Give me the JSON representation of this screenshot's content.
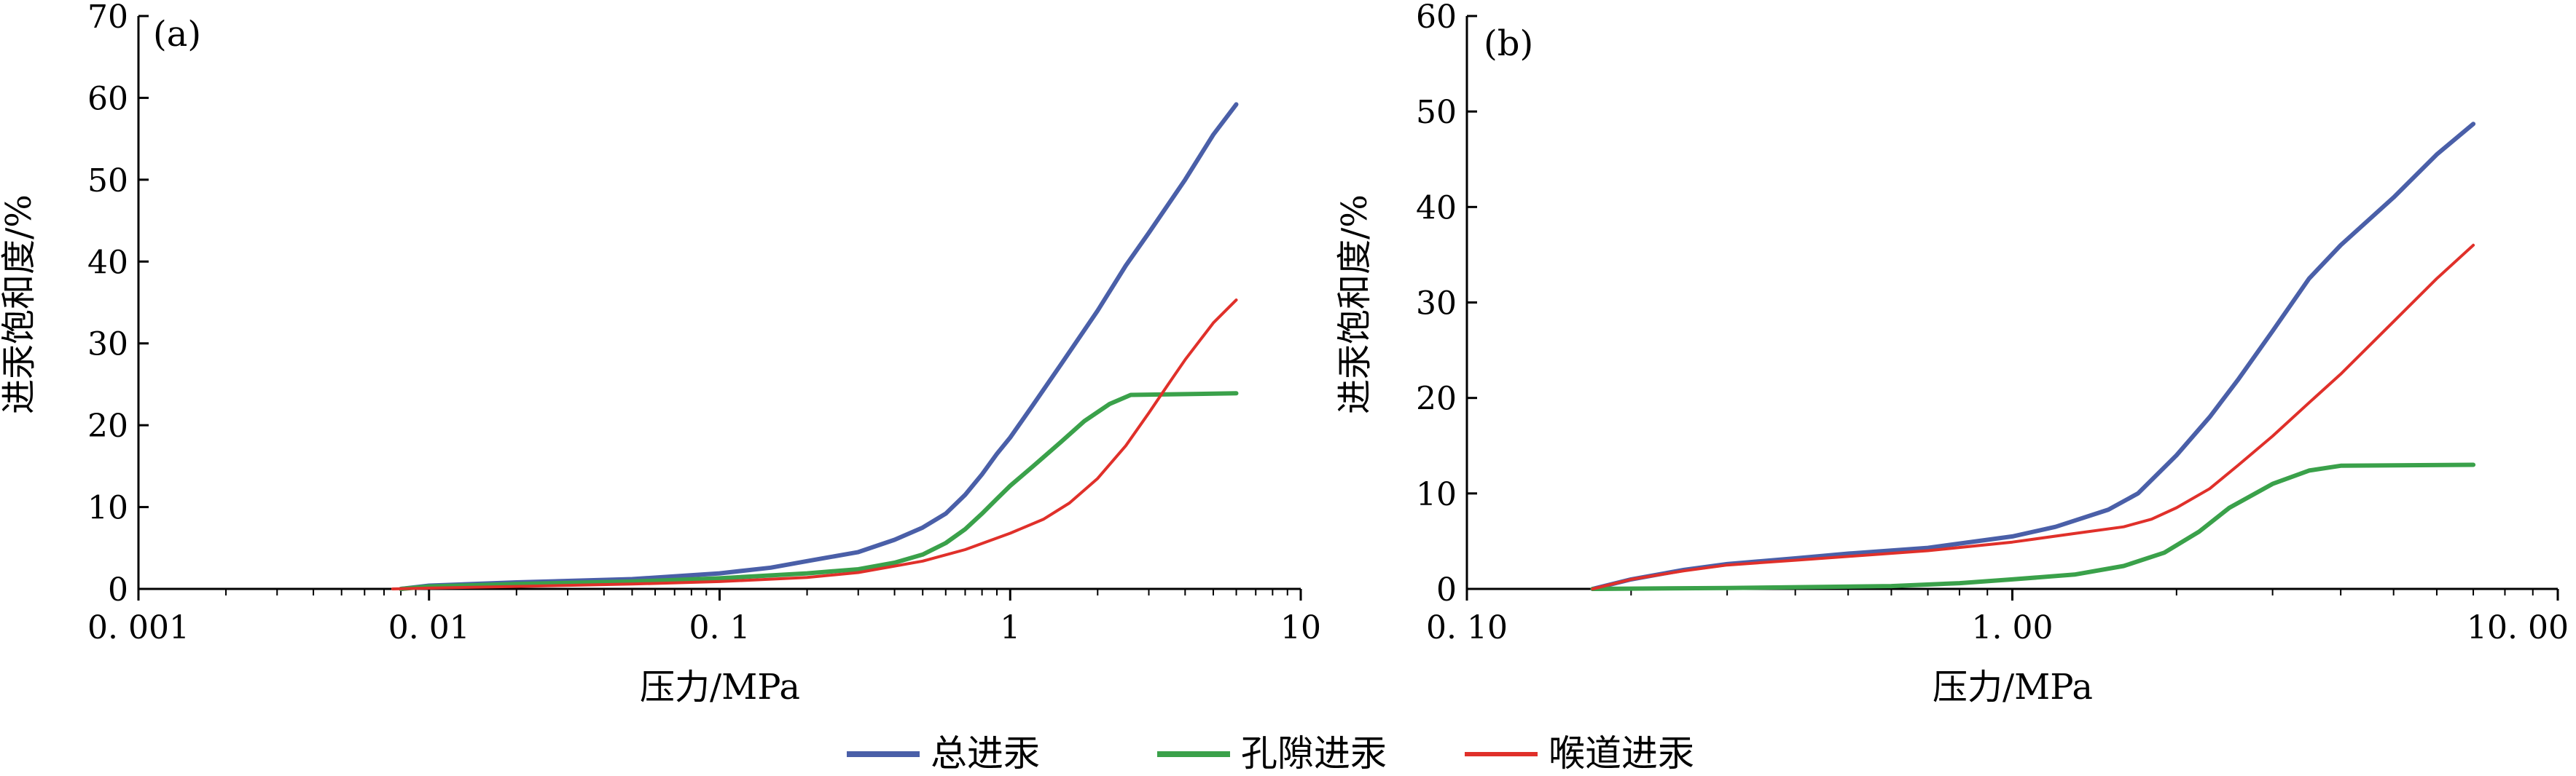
{
  "chart_data": [
    {
      "panel_label": "(a)",
      "type": "line",
      "x_scale": "log",
      "xlim": [
        0.001,
        10
      ],
      "ylim": [
        0,
        70
      ],
      "xlabel": "压力/MPa",
      "ylabel": "进汞饱和度/%",
      "x_ticks": [
        0.001,
        0.01,
        0.1,
        1,
        10
      ],
      "x_tick_labels": [
        "0. 001",
        "0. 01",
        "0. 1",
        "1",
        "10"
      ],
      "y_ticks": [
        0,
        10,
        20,
        30,
        40,
        50,
        60,
        70
      ],
      "y_tick_labels": [
        "0",
        "10",
        "20",
        "30",
        "40",
        "50",
        "60",
        "70"
      ],
      "series": [
        {
          "name": "总进汞",
          "color": "#4a5fa8",
          "points": [
            [
              0.008,
              0
            ],
            [
              0.01,
              0.4
            ],
            [
              0.02,
              0.8
            ],
            [
              0.05,
              1.2
            ],
            [
              0.1,
              1.9
            ],
            [
              0.15,
              2.6
            ],
            [
              0.2,
              3.4
            ],
            [
              0.3,
              4.5
            ],
            [
              0.4,
              6.0
            ],
            [
              0.5,
              7.5
            ],
            [
              0.6,
              9.2
            ],
            [
              0.7,
              11.5
            ],
            [
              0.8,
              14.0
            ],
            [
              0.9,
              16.5
            ],
            [
              1.0,
              18.5
            ],
            [
              1.2,
              22.5
            ],
            [
              1.5,
              27.5
            ],
            [
              2.0,
              34.0
            ],
            [
              2.5,
              39.5
            ],
            [
              3.0,
              43.5
            ],
            [
              4.0,
              50.0
            ],
            [
              5.0,
              55.5
            ],
            [
              6.0,
              59.2
            ]
          ]
        },
        {
          "name": "孔隙进汞",
          "color": "#3aa14a",
          "points": [
            [
              0.008,
              0
            ],
            [
              0.01,
              0.3
            ],
            [
              0.02,
              0.6
            ],
            [
              0.05,
              0.9
            ],
            [
              0.1,
              1.3
            ],
            [
              0.2,
              1.9
            ],
            [
              0.3,
              2.4
            ],
            [
              0.4,
              3.2
            ],
            [
              0.5,
              4.2
            ],
            [
              0.6,
              5.6
            ],
            [
              0.7,
              7.3
            ],
            [
              0.8,
              9.2
            ],
            [
              0.9,
              11.0
            ],
            [
              1.0,
              12.6
            ],
            [
              1.2,
              15.0
            ],
            [
              1.5,
              18.0
            ],
            [
              1.8,
              20.5
            ],
            [
              2.2,
              22.6
            ],
            [
              2.6,
              23.7
            ],
            [
              6.0,
              23.9
            ]
          ]
        },
        {
          "name": "喉道进汞",
          "color": "#e0302a",
          "points": [
            [
              0.0075,
              0
            ],
            [
              0.01,
              0.1
            ],
            [
              0.02,
              0.3
            ],
            [
              0.05,
              0.6
            ],
            [
              0.1,
              0.9
            ],
            [
              0.2,
              1.4
            ],
            [
              0.3,
              2.0
            ],
            [
              0.5,
              3.4
            ],
            [
              0.7,
              4.8
            ],
            [
              1.0,
              6.8
            ],
            [
              1.3,
              8.5
            ],
            [
              1.6,
              10.5
            ],
            [
              2.0,
              13.5
            ],
            [
              2.5,
              17.5
            ],
            [
              3.0,
              21.5
            ],
            [
              3.5,
              25.0
            ],
            [
              4.0,
              28.0
            ],
            [
              5.0,
              32.5
            ],
            [
              6.0,
              35.3
            ]
          ]
        }
      ]
    },
    {
      "panel_label": "(b)",
      "type": "line",
      "x_scale": "log",
      "xlim": [
        0.1,
        10
      ],
      "ylim": [
        0,
        60
      ],
      "xlabel": "压力/MPa",
      "ylabel": "进汞饱和度/%",
      "x_ticks": [
        0.1,
        1,
        10
      ],
      "x_tick_labels": [
        "0. 10",
        "1. 00",
        "10. 00"
      ],
      "y_ticks": [
        0,
        10,
        20,
        30,
        40,
        50,
        60
      ],
      "y_tick_labels": [
        "0",
        "10",
        "20",
        "30",
        "40",
        "50",
        "60"
      ],
      "series": [
        {
          "name": "总进汞",
          "color": "#4a5fa8",
          "points": [
            [
              0.17,
              0
            ],
            [
              0.2,
              1.0
            ],
            [
              0.25,
              2.0
            ],
            [
              0.3,
              2.6
            ],
            [
              0.4,
              3.2
            ],
            [
              0.5,
              3.7
            ],
            [
              0.7,
              4.3
            ],
            [
              1.0,
              5.5
            ],
            [
              1.2,
              6.5
            ],
            [
              1.5,
              8.3
            ],
            [
              1.7,
              10.0
            ],
            [
              2.0,
              14.0
            ],
            [
              2.3,
              18.0
            ],
            [
              2.6,
              22.0
            ],
            [
              3.0,
              27.0
            ],
            [
              3.5,
              32.5
            ],
            [
              4.0,
              36.0
            ],
            [
              5.0,
              41.0
            ],
            [
              6.0,
              45.5
            ],
            [
              7.0,
              48.7
            ]
          ]
        },
        {
          "name": "孔隙进汞",
          "color": "#3aa14a",
          "points": [
            [
              0.17,
              0
            ],
            [
              0.3,
              0.1
            ],
            [
              0.6,
              0.3
            ],
            [
              0.8,
              0.6
            ],
            [
              1.0,
              1.0
            ],
            [
              1.3,
              1.5
            ],
            [
              1.6,
              2.4
            ],
            [
              1.9,
              3.8
            ],
            [
              2.2,
              6.0
            ],
            [
              2.5,
              8.5
            ],
            [
              3.0,
              11.0
            ],
            [
              3.5,
              12.4
            ],
            [
              4.0,
              12.9
            ],
            [
              7.0,
              13.0
            ]
          ]
        },
        {
          "name": "喉道进汞",
          "color": "#e0302a",
          "points": [
            [
              0.17,
              0
            ],
            [
              0.2,
              1.0
            ],
            [
              0.25,
              1.9
            ],
            [
              0.3,
              2.5
            ],
            [
              0.4,
              3.0
            ],
            [
              0.5,
              3.4
            ],
            [
              0.7,
              4.0
            ],
            [
              1.0,
              4.9
            ],
            [
              1.3,
              5.8
            ],
            [
              1.6,
              6.5
            ],
            [
              1.8,
              7.3
            ],
            [
              2.0,
              8.5
            ],
            [
              2.3,
              10.5
            ],
            [
              2.6,
              13.0
            ],
            [
              3.0,
              16.0
            ],
            [
              3.5,
              19.5
            ],
            [
              4.0,
              22.5
            ],
            [
              5.0,
              28.0
            ],
            [
              6.0,
              32.5
            ],
            [
              7.0,
              36.0
            ]
          ]
        }
      ]
    }
  ],
  "legend": {
    "position": "bottom-center",
    "items": [
      {
        "label": "总进汞",
        "color": "#4a5fa8"
      },
      {
        "label": "孔隙进汞",
        "color": "#3aa14a"
      },
      {
        "label": "喉道进汞",
        "color": "#e0302a"
      }
    ]
  }
}
